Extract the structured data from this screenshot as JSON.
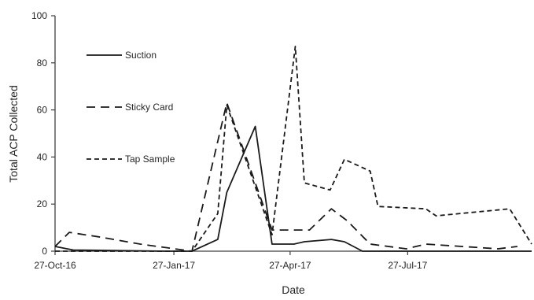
{
  "chart_data": {
    "type": "line",
    "title": "",
    "xlabel": "Date",
    "ylabel": "Total ACP Collected",
    "ylim": [
      0,
      100
    ],
    "yticks": [
      0,
      20,
      40,
      60,
      80,
      100
    ],
    "xlim": [
      "2016-10-27",
      "2017-10-31"
    ],
    "xtick_labels": [
      "27-Oct-16",
      "27-Jan-17",
      "27-Apr-17",
      "27-Jul-17"
    ],
    "xtick_dates": [
      "2016-10-27",
      "2017-01-27",
      "2017-04-27",
      "2017-07-27"
    ],
    "grid": false,
    "legend_placement": "top-left",
    "series": [
      {
        "name": "Suction",
        "style": "solid",
        "points": [
          [
            "2016-10-27",
            2
          ],
          [
            "2016-11-10",
            0.5
          ],
          [
            "2017-01-20",
            0
          ],
          [
            "2017-02-10",
            0
          ],
          [
            "2017-03-02",
            5
          ],
          [
            "2017-03-09",
            25
          ],
          [
            "2017-03-31",
            53
          ],
          [
            "2017-04-13",
            3
          ],
          [
            "2017-04-30",
            3
          ],
          [
            "2017-05-08",
            4
          ],
          [
            "2017-05-29",
            5
          ],
          [
            "2017-06-08",
            4
          ],
          [
            "2017-06-22",
            0
          ],
          [
            "2017-10-31",
            0
          ]
        ]
      },
      {
        "name": "Sticky Card",
        "style": "dashed",
        "points": [
          [
            "2016-10-27",
            2
          ],
          [
            "2016-11-07",
            8
          ],
          [
            "2016-12-01",
            6
          ],
          [
            "2017-01-01",
            3
          ],
          [
            "2017-02-10",
            0
          ],
          [
            "2017-03-09",
            63
          ],
          [
            "2017-04-13",
            9
          ],
          [
            "2017-05-12",
            9
          ],
          [
            "2017-05-29",
            18
          ],
          [
            "2017-06-10",
            13
          ],
          [
            "2017-06-28",
            3
          ],
          [
            "2017-07-26",
            1
          ],
          [
            "2017-08-10",
            3
          ],
          [
            "2017-10-05",
            1
          ],
          [
            "2017-10-20",
            2
          ]
        ]
      },
      {
        "name": "Tap Sample",
        "style": "short-dashed",
        "points": [
          [
            "2016-10-27",
            0
          ],
          [
            "2017-02-10",
            0
          ],
          [
            "2017-03-02",
            16
          ],
          [
            "2017-03-09",
            62
          ],
          [
            "2017-04-13",
            7
          ],
          [
            "2017-05-01",
            87
          ],
          [
            "2017-05-08",
            29
          ],
          [
            "2017-05-28",
            26
          ],
          [
            "2017-06-08",
            39
          ],
          [
            "2017-06-28",
            34
          ],
          [
            "2017-07-04",
            19
          ],
          [
            "2017-08-10",
            18
          ],
          [
            "2017-08-18",
            15
          ],
          [
            "2017-10-14",
            18
          ],
          [
            "2017-10-31",
            3
          ]
        ]
      }
    ]
  }
}
